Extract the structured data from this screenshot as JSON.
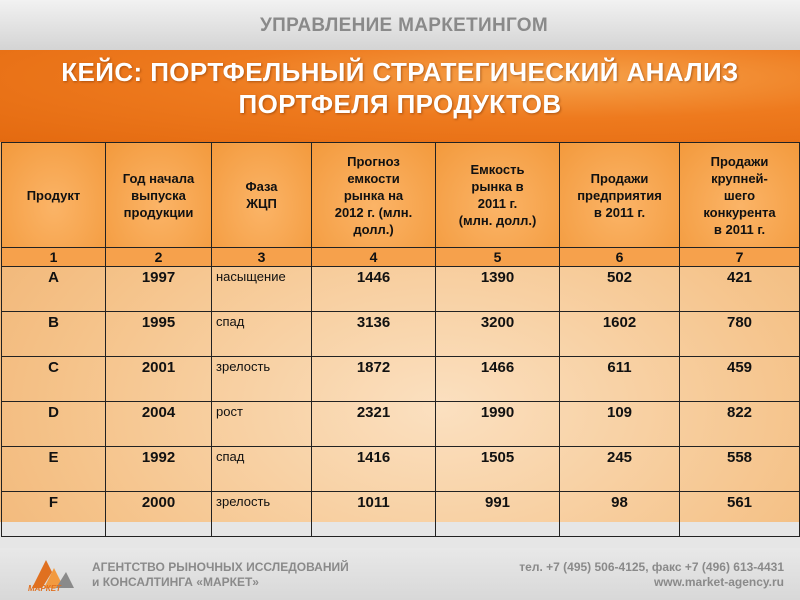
{
  "header": {
    "section": "УПРАВЛЕНИЕ МАРКЕТИНГОМ"
  },
  "slide": {
    "title_line1": "КЕЙС: ПОРТФЕЛЬНЫЙ СТРАТЕГИЧЕСКИЙ АНАЛИЗ",
    "title_line2": "ПОРТФЕЛЯ ПРОДУКТОВ"
  },
  "table": {
    "headers": [
      [
        "Продукт"
      ],
      [
        "Год начала",
        "выпуска",
        "продукции"
      ],
      [
        "Фаза",
        "ЖЦП"
      ],
      [
        "Прогноз",
        "емкости",
        "рынка на",
        "2012 г. (млн.",
        "долл.)"
      ],
      [
        "Емкость",
        "рынка в",
        "2011 г.",
        "(млн. долл.)"
      ],
      [
        "Продажи",
        "предприятия",
        "в 2011 г."
      ],
      [
        "Продажи",
        "крупней-",
        "шего",
        "конкурента",
        "в 2011 г."
      ]
    ],
    "column_numbers": [
      "1",
      "2",
      "3",
      "4",
      "5",
      "6",
      "7"
    ],
    "rows": [
      [
        "A",
        "1997",
        "насыщение",
        "1446",
        "1390",
        "502",
        "421"
      ],
      [
        "B",
        "1995",
        "спад",
        "3136",
        "3200",
        "1602",
        "780"
      ],
      [
        "C",
        "2001",
        "зрелость",
        "1872",
        "1466",
        "611",
        "459"
      ],
      [
        "D",
        "2004",
        "рост",
        "2321",
        "1990",
        "109",
        "822"
      ],
      [
        "E",
        "1992",
        "спад",
        "1416",
        "1505",
        "245",
        "558"
      ],
      [
        "F",
        "2000",
        "зрелость",
        "1011",
        "991",
        "98",
        "561"
      ]
    ]
  },
  "footer": {
    "logo_text": "МАРКЕТ",
    "agency_line1": "АГЕНТСТВО РЫНОЧНЫХ ИССЛЕДОВАНИЙ",
    "agency_line2": "и КОНСАЛТИНГА «МАРКЕТ»",
    "phone_line": "тел. +7 (495) 506-4125, факс +7 (496) 613-4431",
    "website": "www.market-agency.ru"
  },
  "colors": {
    "accent_orange": "#ee7a1e",
    "header_cell": "#f39a3d",
    "body_bg": "#f5c38a",
    "gray_text": "#8a8a8a"
  }
}
